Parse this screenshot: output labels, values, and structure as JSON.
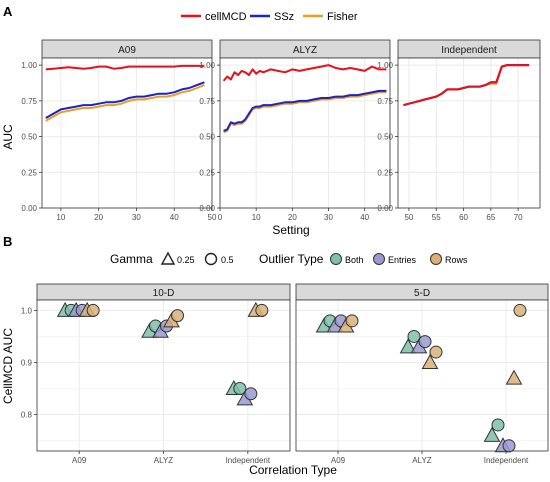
{
  "panel_a": {
    "tag": "A",
    "legend": [
      {
        "name": "cellMCD",
        "color": "#e8101a"
      },
      {
        "name": "SSz",
        "color": "#1a22c8"
      },
      {
        "name": "Fisher",
        "color": "#e8a020"
      }
    ],
    "ylabel": "AUC",
    "xlabel": "Setting",
    "yticks": [
      "0.00",
      "0.25",
      "0.50",
      "0.75",
      "1.00"
    ]
  },
  "panel_b": {
    "tag": "B",
    "gamma_title": "Gamma",
    "gamma_labels": [
      "0.25",
      "0.5"
    ],
    "outlier_title": "Outlier Type",
    "outlier_types": [
      {
        "name": "Both",
        "color": "#7cc0a8"
      },
      {
        "name": "Entries",
        "color": "#9a9ad0"
      },
      {
        "name": "Rows",
        "color": "#d8b078"
      }
    ],
    "ylabel": "CellMCD AUC",
    "xlabel": "Correlation Type",
    "yticks": [
      "0.8",
      "0.9",
      "1.0"
    ],
    "categories": [
      "A09",
      "ALYZ",
      "Independent"
    ]
  },
  "chart_data": [
    {
      "type": "line",
      "facet": "A09",
      "xlim": [
        5,
        50
      ],
      "ylim": [
        0,
        1.05
      ],
      "xticks": [
        10,
        20,
        30,
        40,
        50
      ],
      "series": [
        {
          "name": "cellMCD",
          "x": [
            6,
            8,
            10,
            12,
            14,
            16,
            18,
            20,
            22,
            24,
            26,
            28,
            30,
            32,
            34,
            36,
            38,
            40,
            42,
            44,
            46,
            48
          ],
          "y": [
            0.97,
            0.975,
            0.98,
            0.985,
            0.98,
            0.975,
            0.98,
            0.99,
            0.99,
            0.975,
            0.98,
            0.99,
            0.99,
            0.99,
            0.99,
            0.99,
            0.99,
            0.99,
            0.995,
            0.995,
            0.995,
            0.995
          ]
        },
        {
          "name": "SSz",
          "x": [
            6,
            8,
            10,
            12,
            14,
            16,
            18,
            20,
            22,
            24,
            26,
            28,
            30,
            32,
            34,
            36,
            38,
            40,
            42,
            44,
            46,
            48
          ],
          "y": [
            0.63,
            0.66,
            0.69,
            0.7,
            0.71,
            0.72,
            0.72,
            0.73,
            0.74,
            0.74,
            0.75,
            0.77,
            0.78,
            0.78,
            0.79,
            0.8,
            0.8,
            0.81,
            0.83,
            0.84,
            0.86,
            0.88
          ]
        },
        {
          "name": "Fisher",
          "x": [
            6,
            8,
            10,
            12,
            14,
            16,
            18,
            20,
            22,
            24,
            26,
            28,
            30,
            32,
            34,
            36,
            38,
            40,
            42,
            44,
            46,
            48
          ],
          "y": [
            0.61,
            0.64,
            0.67,
            0.68,
            0.69,
            0.7,
            0.7,
            0.71,
            0.72,
            0.72,
            0.73,
            0.75,
            0.76,
            0.76,
            0.77,
            0.78,
            0.78,
            0.79,
            0.81,
            0.82,
            0.84,
            0.86
          ]
        }
      ]
    },
    {
      "type": "line",
      "facet": "ALYZ",
      "xlim": [
        0,
        47
      ],
      "ylim": [
        0,
        1.05
      ],
      "xticks": [
        0,
        10,
        20,
        30,
        40
      ],
      "series": [
        {
          "name": "cellMCD",
          "x": [
            1,
            2,
            3,
            4,
            5,
            6,
            7,
            8,
            9,
            10,
            11,
            12,
            14,
            16,
            18,
            20,
            22,
            24,
            26,
            28,
            30,
            32,
            34,
            36,
            38,
            40,
            42,
            44,
            46
          ],
          "y": [
            0.89,
            0.92,
            0.9,
            0.95,
            0.93,
            0.96,
            0.95,
            0.93,
            0.97,
            0.94,
            0.96,
            0.95,
            0.97,
            0.96,
            0.95,
            0.97,
            0.96,
            0.97,
            0.98,
            0.99,
            1.0,
            0.98,
            0.97,
            0.98,
            0.97,
            0.96,
            0.99,
            0.97,
            0.97
          ]
        },
        {
          "name": "SSz",
          "x": [
            1,
            2,
            3,
            4,
            5,
            6,
            7,
            8,
            9,
            10,
            11,
            12,
            14,
            16,
            18,
            20,
            22,
            24,
            26,
            28,
            30,
            32,
            34,
            36,
            38,
            40,
            42,
            44,
            46
          ],
          "y": [
            0.54,
            0.55,
            0.6,
            0.59,
            0.6,
            0.6,
            0.62,
            0.66,
            0.7,
            0.71,
            0.71,
            0.72,
            0.72,
            0.73,
            0.74,
            0.74,
            0.75,
            0.75,
            0.76,
            0.77,
            0.77,
            0.78,
            0.78,
            0.79,
            0.79,
            0.8,
            0.81,
            0.82,
            0.82
          ]
        },
        {
          "name": "Fisher",
          "x": [
            1,
            2,
            3,
            4,
            5,
            6,
            7,
            8,
            9,
            10,
            11,
            12,
            14,
            16,
            18,
            20,
            22,
            24,
            26,
            28,
            30,
            32,
            34,
            36,
            38,
            40,
            42,
            44,
            46
          ],
          "y": [
            0.53,
            0.54,
            0.59,
            0.58,
            0.59,
            0.59,
            0.61,
            0.65,
            0.69,
            0.7,
            0.7,
            0.71,
            0.71,
            0.72,
            0.73,
            0.73,
            0.74,
            0.74,
            0.75,
            0.76,
            0.76,
            0.77,
            0.77,
            0.78,
            0.78,
            0.79,
            0.8,
            0.81,
            0.81
          ]
        }
      ]
    },
    {
      "type": "line",
      "facet": "Independent",
      "xlim": [
        48,
        74
      ],
      "ylim": [
        0,
        1.05
      ],
      "xticks": [
        50,
        55,
        60,
        65,
        70
      ],
      "series": [
        {
          "name": "cellMCD",
          "x": [
            49,
            50,
            51,
            52,
            53,
            54,
            55,
            56,
            57,
            58,
            59,
            60,
            61,
            62,
            63,
            64,
            65,
            66,
            67,
            68,
            69,
            70,
            71,
            72
          ],
          "y": [
            0.72,
            0.73,
            0.74,
            0.75,
            0.76,
            0.77,
            0.78,
            0.8,
            0.83,
            0.83,
            0.83,
            0.84,
            0.85,
            0.85,
            0.85,
            0.86,
            0.88,
            0.88,
            0.99,
            1.0,
            1.0,
            1.0,
            1.0,
            1.0
          ]
        },
        {
          "name": "SSz",
          "x": [
            49,
            50,
            51,
            52,
            53,
            54,
            55,
            56,
            57,
            58,
            59,
            60,
            61,
            62,
            63,
            64,
            65,
            66,
            67,
            68,
            69,
            70,
            71,
            72
          ],
          "y": [
            0.72,
            0.73,
            0.74,
            0.75,
            0.76,
            0.77,
            0.78,
            0.8,
            0.83,
            0.83,
            0.83,
            0.84,
            0.85,
            0.85,
            0.85,
            0.86,
            0.88,
            0.88,
            0.99,
            1.0,
            1.0,
            1.0,
            1.0,
            1.0
          ]
        },
        {
          "name": "Fisher",
          "x": [
            49,
            50,
            51,
            52,
            53,
            54,
            55,
            56,
            57,
            58,
            59,
            60,
            61,
            62,
            63,
            64,
            65,
            66,
            67,
            68,
            69,
            70,
            71,
            72
          ],
          "y": [
            0.72,
            0.73,
            0.74,
            0.75,
            0.76,
            0.77,
            0.78,
            0.8,
            0.83,
            0.83,
            0.83,
            0.84,
            0.85,
            0.85,
            0.85,
            0.86,
            0.87,
            0.87,
            0.99,
            1.0,
            1.0,
            1.0,
            1.0,
            1.0
          ]
        }
      ]
    },
    {
      "type": "scatter",
      "facet": "10-D",
      "ylim": [
        0.73,
        1.02
      ],
      "categories": [
        "A09",
        "ALYZ",
        "Independent"
      ],
      "points": [
        {
          "cat": "A09",
          "outlier": "Both",
          "gamma": "0.25",
          "y": 1.0
        },
        {
          "cat": "A09",
          "outlier": "Both",
          "gamma": "0.5",
          "y": 1.0
        },
        {
          "cat": "A09",
          "outlier": "Entries",
          "gamma": "0.25",
          "y": 1.0
        },
        {
          "cat": "A09",
          "outlier": "Entries",
          "gamma": "0.5",
          "y": 1.0
        },
        {
          "cat": "A09",
          "outlier": "Rows",
          "gamma": "0.25",
          "y": 1.0
        },
        {
          "cat": "A09",
          "outlier": "Rows",
          "gamma": "0.5",
          "y": 1.0
        },
        {
          "cat": "ALYZ",
          "outlier": "Both",
          "gamma": "0.25",
          "y": 0.96
        },
        {
          "cat": "ALYZ",
          "outlier": "Both",
          "gamma": "0.5",
          "y": 0.97
        },
        {
          "cat": "ALYZ",
          "outlier": "Entries",
          "gamma": "0.25",
          "y": 0.96
        },
        {
          "cat": "ALYZ",
          "outlier": "Entries",
          "gamma": "0.5",
          "y": 0.97
        },
        {
          "cat": "ALYZ",
          "outlier": "Rows",
          "gamma": "0.25",
          "y": 0.98
        },
        {
          "cat": "ALYZ",
          "outlier": "Rows",
          "gamma": "0.5",
          "y": 0.99
        },
        {
          "cat": "Independent",
          "outlier": "Both",
          "gamma": "0.25",
          "y": 0.85
        },
        {
          "cat": "Independent",
          "outlier": "Both",
          "gamma": "0.5",
          "y": 0.85
        },
        {
          "cat": "Independent",
          "outlier": "Entries",
          "gamma": "0.25",
          "y": 0.83
        },
        {
          "cat": "Independent",
          "outlier": "Entries",
          "gamma": "0.5",
          "y": 0.84
        },
        {
          "cat": "Independent",
          "outlier": "Rows",
          "gamma": "0.25",
          "y": 1.0
        },
        {
          "cat": "Independent",
          "outlier": "Rows",
          "gamma": "0.5",
          "y": 1.0
        }
      ]
    },
    {
      "type": "scatter",
      "facet": "5-D",
      "ylim": [
        0.73,
        1.02
      ],
      "categories": [
        "A09",
        "ALYZ",
        "Independent"
      ],
      "points": [
        {
          "cat": "A09",
          "outlier": "Both",
          "gamma": "0.25",
          "y": 0.97
        },
        {
          "cat": "A09",
          "outlier": "Both",
          "gamma": "0.5",
          "y": 0.98
        },
        {
          "cat": "A09",
          "outlier": "Entries",
          "gamma": "0.25",
          "y": 0.97
        },
        {
          "cat": "A09",
          "outlier": "Entries",
          "gamma": "0.5",
          "y": 0.98
        },
        {
          "cat": "A09",
          "outlier": "Rows",
          "gamma": "0.25",
          "y": 0.97
        },
        {
          "cat": "A09",
          "outlier": "Rows",
          "gamma": "0.5",
          "y": 0.98
        },
        {
          "cat": "ALYZ",
          "outlier": "Both",
          "gamma": "0.25",
          "y": 0.93
        },
        {
          "cat": "ALYZ",
          "outlier": "Both",
          "gamma": "0.5",
          "y": 0.95
        },
        {
          "cat": "ALYZ",
          "outlier": "Entries",
          "gamma": "0.25",
          "y": 0.93
        },
        {
          "cat": "ALYZ",
          "outlier": "Entries",
          "gamma": "0.5",
          "y": 0.94
        },
        {
          "cat": "ALYZ",
          "outlier": "Rows",
          "gamma": "0.25",
          "y": 0.9
        },
        {
          "cat": "ALYZ",
          "outlier": "Rows",
          "gamma": "0.5",
          "y": 0.92
        },
        {
          "cat": "Independent",
          "outlier": "Both",
          "gamma": "0.25",
          "y": 0.76
        },
        {
          "cat": "Independent",
          "outlier": "Both",
          "gamma": "0.5",
          "y": 0.78
        },
        {
          "cat": "Independent",
          "outlier": "Entries",
          "gamma": "0.25",
          "y": 0.74
        },
        {
          "cat": "Independent",
          "outlier": "Entries",
          "gamma": "0.5",
          "y": 0.74
        },
        {
          "cat": "Independent",
          "outlier": "Rows",
          "gamma": "0.25",
          "y": 0.87
        },
        {
          "cat": "Independent",
          "outlier": "Rows",
          "gamma": "0.5",
          "y": 1.0
        }
      ]
    }
  ]
}
